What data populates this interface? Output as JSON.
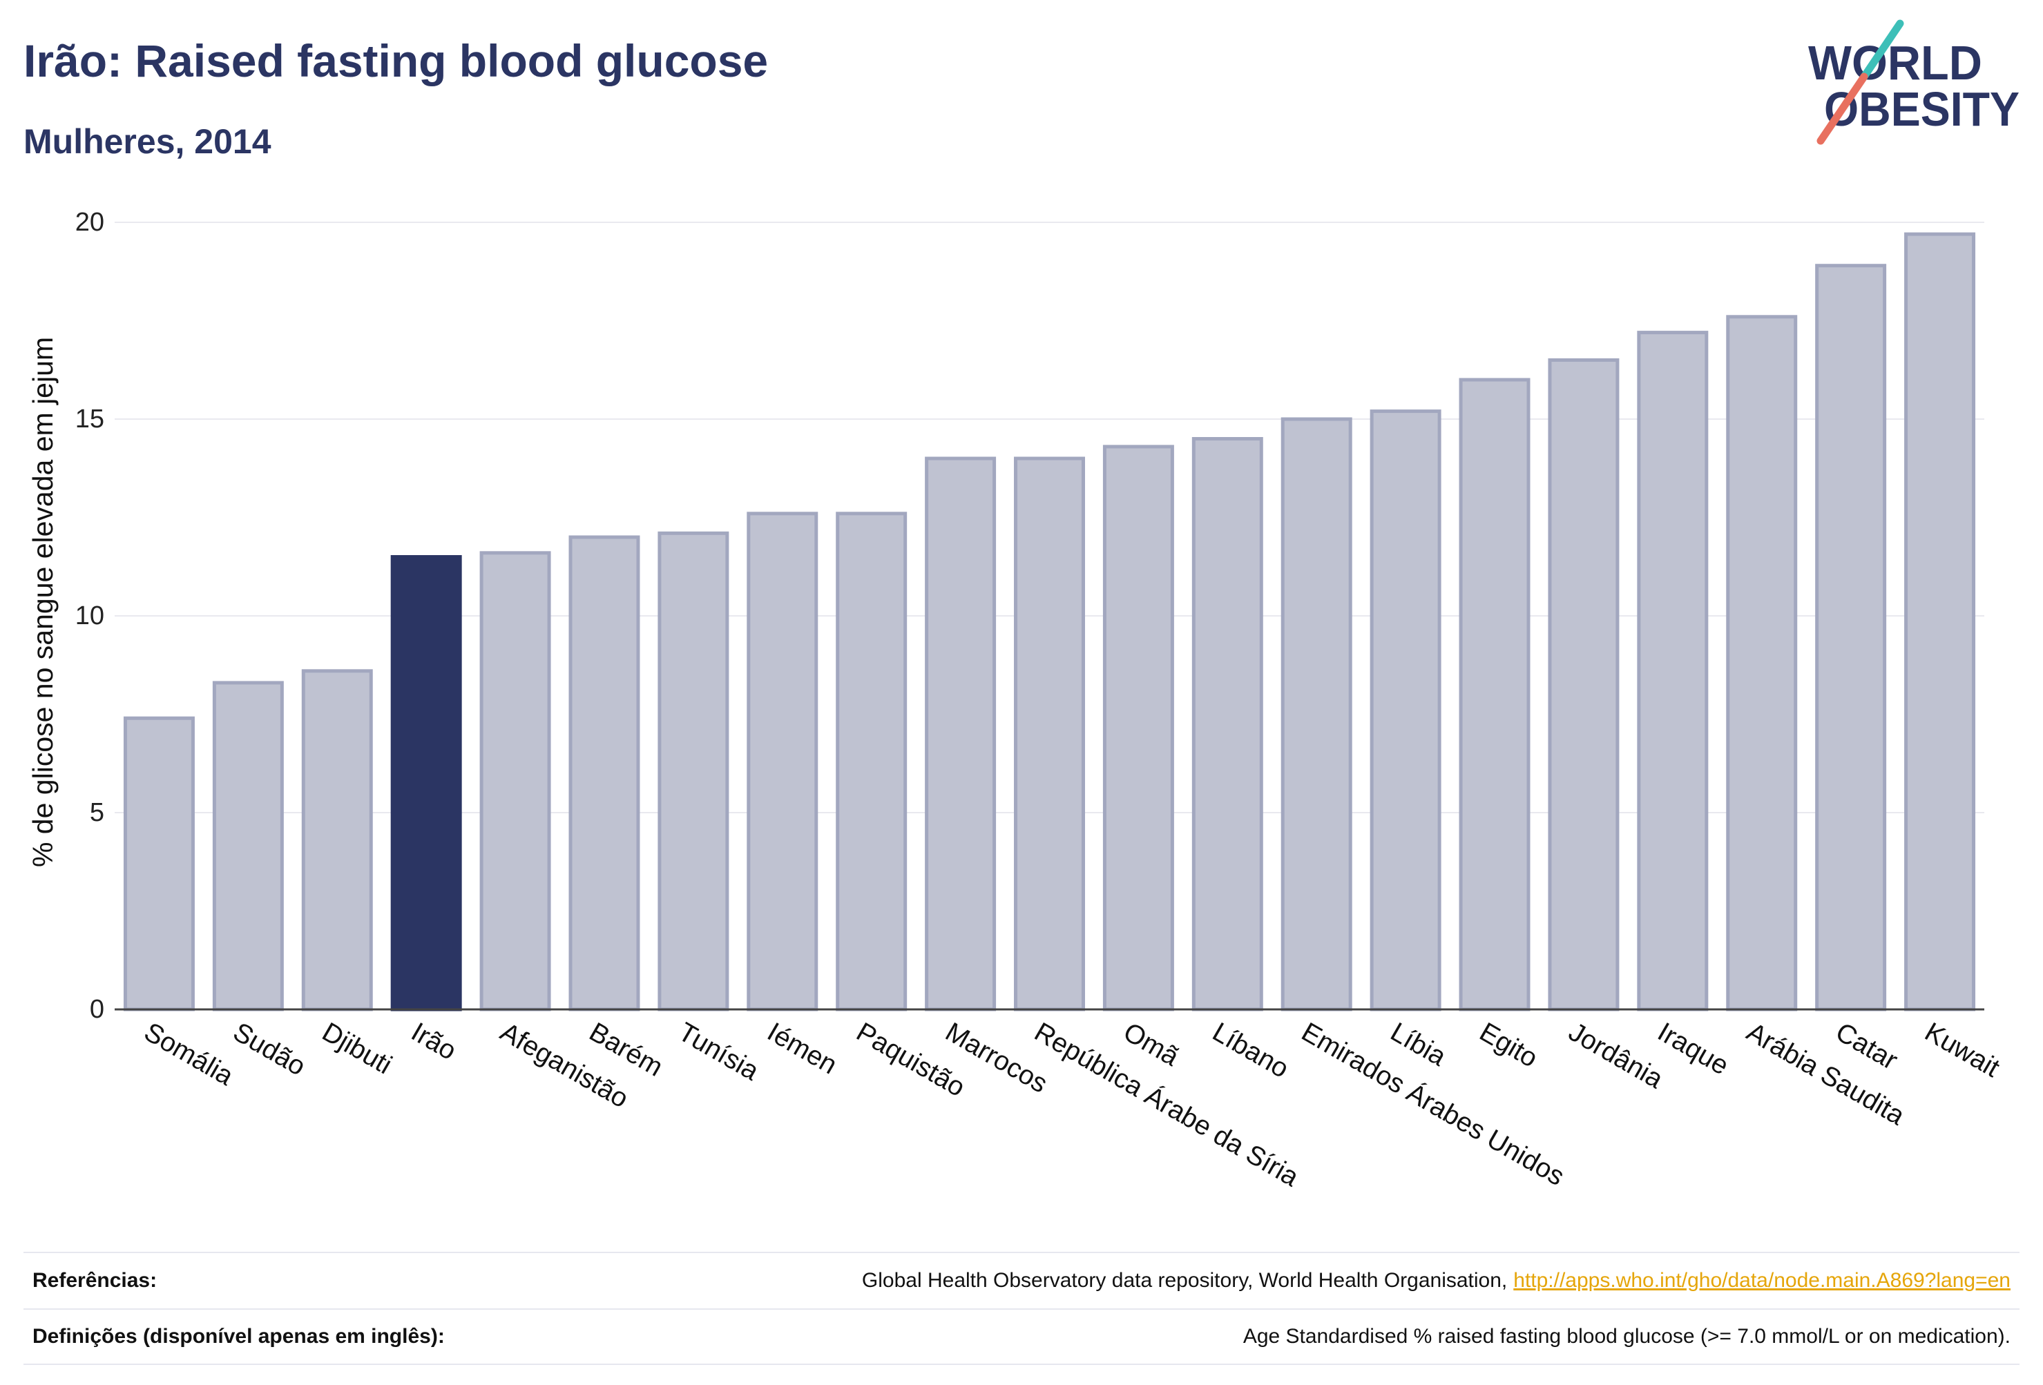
{
  "logo": {
    "line1": "WORLD",
    "line2": "OBESITY",
    "text_color": "#2b3563",
    "accent_top_color": "#3dbfb8",
    "accent_bottom_color": "#e8705f"
  },
  "chart_data": {
    "type": "bar",
    "title": "Irão: Raised fasting blood glucose",
    "subtitle": "Mulheres, 2014",
    "xlabel": "",
    "ylabel": "% de glicose no sangue elevada em jejum",
    "ylim": [
      0,
      20
    ],
    "yticks": [
      0,
      5,
      10,
      15,
      20
    ],
    "grid": true,
    "categories": [
      "Somália",
      "Sudão",
      "Djibuti",
      "Irão",
      "Afeganistão",
      "Barém",
      "Tunísia",
      "Iémen",
      "Paquistão",
      "Marrocos",
      "República Árabe da Síria",
      "Omã",
      "Líbano",
      "Emirados Árabes Unidos",
      "Líbia",
      "Egito",
      "Jordânia",
      "Iraque",
      "Arábia Saudita",
      "Catar",
      "Kuwait"
    ],
    "values": [
      7.4,
      8.3,
      8.6,
      11.5,
      11.6,
      12.0,
      12.1,
      12.6,
      12.6,
      14.0,
      14.0,
      14.3,
      14.5,
      15.0,
      15.2,
      16.0,
      16.5,
      17.2,
      17.6,
      18.9,
      19.7
    ],
    "highlight_index": 3,
    "colors": {
      "bar": "#bfc2d1",
      "bar_border": "#a2a7bf",
      "highlight": "#2b3563",
      "gridline": "#e9e9ef",
      "zeroline": "#444444"
    }
  },
  "footer": {
    "references_label": "Referências:",
    "references_text": "Global Health Observatory data repository, World Health Organisation,",
    "references_link": "http://apps.who.int/gho/data/node.main.A869?lang=en",
    "definitions_label": "Definições (disponível apenas em inglês):",
    "definitions_text": "Age Standardised % raised fasting blood glucose (>= 7.0 mmol/L or on medication).",
    "link_color": "#e5a50a"
  }
}
